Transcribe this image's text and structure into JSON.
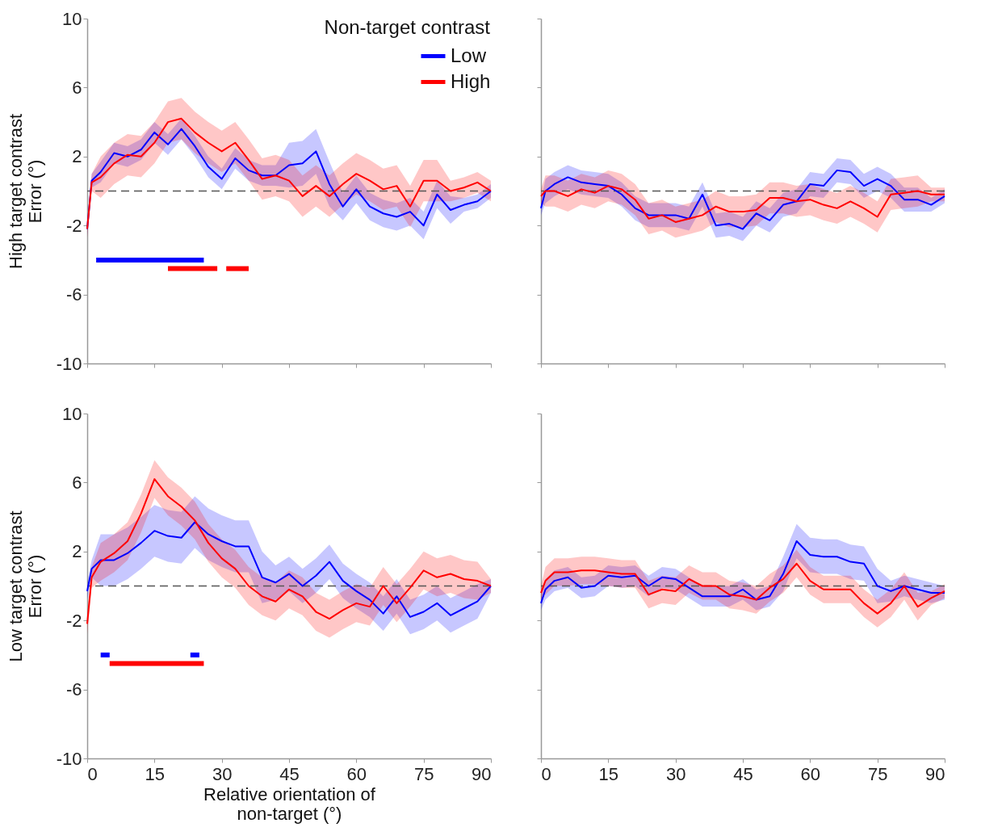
{
  "chart_data": [
    {
      "type": "line",
      "ylabel": "High target contrast\nError (°)",
      "legend_title": "Non-target contrast",
      "legend": "top right",
      "tick_labels": "y",
      "grid": false,
      "marker": "none",
      "line_style": "solid",
      "xlim": [
        0,
        90
      ],
      "xticks": [
        0,
        15,
        30,
        45,
        60,
        75,
        90
      ],
      "ylim": [
        -10,
        10
      ],
      "yticks": [
        -10,
        -6,
        -2,
        2,
        6,
        10
      ],
      "ref_lines": [
        {
          "axis": "y",
          "value": 0,
          "color": "#555555",
          "line_style": "dashed"
        }
      ],
      "x": [
        0,
        1,
        3,
        6,
        9,
        12,
        15,
        18,
        21,
        24,
        27,
        30,
        33,
        36,
        39,
        42,
        45,
        48,
        51,
        54,
        57,
        60,
        63,
        66,
        69,
        72,
        75,
        78,
        81,
        84,
        87,
        90
      ],
      "series": [
        {
          "name": "Low",
          "color": "#0000ff",
          "values": [
            -2.2,
            0.6,
            1.1,
            2.2,
            2.0,
            2.4,
            3.4,
            2.7,
            3.6,
            2.6,
            1.4,
            0.7,
            1.9,
            1.2,
            0.9,
            0.9,
            1.5,
            1.6,
            2.3,
            0.4,
            -0.9,
            0.1,
            -0.9,
            -1.3,
            -1.5,
            -1.2,
            -2.0,
            -0.2,
            -1.1,
            -0.8,
            -0.6,
            0.0
          ],
          "lower": [
            -2.6,
            0.2,
            0.5,
            1.6,
            1.4,
            1.8,
            2.8,
            2.1,
            3.0,
            2.0,
            0.8,
            0.1,
            1.3,
            0.6,
            0.3,
            0.3,
            0.2,
            0.3,
            1.0,
            -0.9,
            -1.7,
            -0.7,
            -1.7,
            -2.1,
            -2.3,
            -2.0,
            -2.8,
            -1.0,
            -1.9,
            -1.2,
            -1.0,
            -0.4
          ],
          "upper": [
            -1.8,
            1.0,
            1.7,
            2.8,
            2.6,
            3.0,
            4.0,
            3.3,
            4.2,
            3.2,
            2.0,
            1.3,
            2.5,
            1.8,
            1.5,
            1.5,
            2.8,
            2.9,
            3.6,
            1.7,
            -0.1,
            0.9,
            -0.1,
            -0.5,
            -0.7,
            -0.4,
            -1.2,
            0.6,
            -0.3,
            -0.4,
            -0.2,
            0.4
          ]
        },
        {
          "name": "High",
          "color": "#ff0000",
          "values": [
            -2.2,
            0.5,
            0.8,
            1.6,
            2.1,
            2.0,
            2.8,
            4.0,
            4.2,
            3.4,
            2.8,
            2.3,
            2.8,
            1.8,
            0.7,
            0.9,
            0.6,
            -0.3,
            0.3,
            -0.3,
            0.4,
            1.0,
            0.6,
            0.1,
            0.3,
            -0.9,
            0.6,
            0.6,
            0.0,
            0.2,
            0.5,
            0.0
          ],
          "lower": [
            -2.7,
            0.0,
            -0.4,
            0.4,
            0.9,
            0.8,
            1.6,
            2.8,
            3.0,
            2.2,
            1.6,
            1.1,
            1.6,
            0.6,
            -0.5,
            -0.3,
            -0.6,
            -1.5,
            -0.9,
            -1.5,
            -0.8,
            -0.2,
            -0.6,
            -1.1,
            -0.9,
            -2.1,
            -0.6,
            -0.6,
            -0.6,
            -0.4,
            -0.1,
            -0.6
          ],
          "upper": [
            -1.7,
            1.0,
            2.0,
            2.8,
            3.3,
            3.2,
            4.0,
            5.2,
            5.4,
            4.6,
            4.0,
            3.5,
            4.0,
            3.0,
            1.9,
            2.1,
            1.8,
            0.9,
            1.5,
            0.9,
            1.6,
            2.2,
            1.8,
            1.3,
            1.5,
            0.3,
            1.8,
            1.8,
            0.6,
            0.8,
            1.1,
            0.6
          ]
        },
        {
          "color": "#0000ff",
          "x": [
            2,
            26
          ],
          "values": [
            -4,
            -4
          ]
        },
        {
          "color": "#ff0000",
          "x": [
            18,
            29
          ],
          "values": [
            -4.5,
            -4.5
          ]
        },
        {
          "color": "#ff0000",
          "x": [
            31,
            36
          ],
          "values": [
            -4.5,
            -4.5
          ]
        }
      ]
    },
    {
      "type": "line",
      "tick_labels": false,
      "grid": false,
      "marker": "none",
      "line_style": "solid",
      "xlim": [
        0,
        90
      ],
      "xticks": [
        0,
        15,
        30,
        45,
        60,
        75,
        90
      ],
      "ylim": [
        -10,
        10
      ],
      "yticks": [
        -10,
        -6,
        -2,
        2,
        6,
        10
      ],
      "ref_lines": [
        {
          "axis": "y",
          "value": 0,
          "color": "#555555",
          "line_style": "dashed"
        }
      ],
      "x": [
        0,
        1,
        3,
        6,
        9,
        12,
        15,
        18,
        21,
        24,
        27,
        30,
        33,
        36,
        39,
        42,
        45,
        48,
        51,
        54,
        57,
        60,
        63,
        66,
        69,
        72,
        75,
        78,
        81,
        84,
        87,
        90
      ],
      "series": [
        {
          "color": "#0000ff",
          "values": [
            -1.0,
            0.0,
            0.4,
            0.8,
            0.5,
            0.4,
            0.3,
            -0.2,
            -1.0,
            -1.4,
            -1.4,
            -1.4,
            -1.6,
            -0.2,
            -2.0,
            -1.9,
            -2.2,
            -1.3,
            -1.7,
            -0.8,
            -0.6,
            0.4,
            0.3,
            1.2,
            1.1,
            0.3,
            0.7,
            0.3,
            -0.5,
            -0.5,
            -0.8,
            -0.3
          ],
          "lower": [
            -1.4,
            -0.7,
            -0.3,
            0.1,
            -0.2,
            -0.3,
            -0.4,
            -0.9,
            -1.7,
            -2.1,
            -2.1,
            -2.1,
            -2.3,
            -0.9,
            -2.7,
            -2.6,
            -2.9,
            -2.0,
            -2.4,
            -1.5,
            -1.3,
            -0.3,
            -0.4,
            0.5,
            0.4,
            -0.4,
            0.0,
            -0.4,
            -1.2,
            -1.2,
            -1.2,
            -0.7
          ],
          "upper": [
            -0.6,
            0.7,
            1.1,
            1.5,
            1.2,
            1.1,
            1.0,
            0.5,
            -0.3,
            -0.7,
            -0.7,
            -0.7,
            -0.9,
            0.5,
            -1.3,
            -1.2,
            -1.5,
            -0.6,
            -1.0,
            -0.1,
            0.1,
            1.1,
            1.0,
            1.9,
            1.8,
            1.0,
            1.4,
            1.0,
            0.2,
            0.2,
            -0.4,
            0.1
          ]
        },
        {
          "color": "#ff0000",
          "values": [
            -0.3,
            0.0,
            0.0,
            -0.3,
            0.1,
            -0.1,
            0.3,
            0.1,
            -0.5,
            -1.6,
            -1.4,
            -1.8,
            -1.6,
            -1.4,
            -0.9,
            -1.2,
            -1.2,
            -1.1,
            -0.4,
            -0.4,
            -0.6,
            -0.5,
            -0.8,
            -1.0,
            -0.6,
            -1.0,
            -1.5,
            -0.2,
            -0.1,
            0.0,
            -0.2,
            -0.2
          ],
          "lower": [
            -0.7,
            -0.9,
            -0.9,
            -1.2,
            -0.8,
            -1.0,
            -0.6,
            -0.8,
            -1.4,
            -2.5,
            -2.3,
            -2.7,
            -2.5,
            -2.3,
            -1.8,
            -2.1,
            -2.1,
            -2.0,
            -1.3,
            -1.3,
            -1.5,
            -1.4,
            -1.7,
            -1.9,
            -1.5,
            -1.9,
            -2.4,
            -1.1,
            -1.0,
            -0.9,
            -0.6,
            -0.6
          ],
          "upper": [
            0.1,
            0.9,
            0.9,
            0.6,
            1.0,
            0.8,
            1.2,
            1.0,
            0.4,
            -0.7,
            -0.5,
            -0.9,
            -0.7,
            -0.5,
            0.0,
            -0.3,
            -0.3,
            -0.2,
            0.5,
            0.5,
            0.3,
            0.4,
            0.1,
            -0.1,
            0.3,
            -0.1,
            -0.6,
            0.7,
            0.8,
            0.9,
            0.2,
            0.2
          ]
        }
      ]
    },
    {
      "type": "line",
      "ylabel": "Low target contrast\nError (°)",
      "xlabel": "Relative orientation of\nnon-target (°)",
      "grid": false,
      "marker": "none",
      "line_style": "solid",
      "xlim": [
        0,
        90
      ],
      "xticks": [
        0,
        15,
        30,
        45,
        60,
        75,
        90
      ],
      "ylim": [
        -10,
        10
      ],
      "yticks": [
        -10,
        -6,
        -2,
        2,
        6,
        10
      ],
      "ref_lines": [
        {
          "axis": "y",
          "value": 0,
          "color": "#555555",
          "line_style": "dashed"
        }
      ],
      "x": [
        0,
        1,
        3,
        6,
        9,
        12,
        15,
        18,
        21,
        24,
        27,
        30,
        33,
        36,
        39,
        42,
        45,
        48,
        51,
        54,
        57,
        60,
        63,
        66,
        69,
        72,
        75,
        78,
        81,
        84,
        87,
        90
      ],
      "series": [
        {
          "color": "#0000ff",
          "values": [
            -0.3,
            1.0,
            1.5,
            1.5,
            1.9,
            2.5,
            3.2,
            2.9,
            2.8,
            3.7,
            3.0,
            2.6,
            2.3,
            2.3,
            0.5,
            0.2,
            0.7,
            0.0,
            0.6,
            1.4,
            0.3,
            -0.3,
            -0.8,
            -1.6,
            -0.6,
            -1.8,
            -1.5,
            -1.0,
            -1.7,
            -1.3,
            -0.9,
            0.0
          ],
          "lower": [
            -0.8,
            0.5,
            0.0,
            0.0,
            0.4,
            1.0,
            1.7,
            1.4,
            1.3,
            2.2,
            1.5,
            1.1,
            0.8,
            0.8,
            -1.0,
            -0.8,
            -0.3,
            -1.0,
            -0.4,
            0.4,
            -0.7,
            -1.3,
            -1.8,
            -2.6,
            -1.6,
            -2.8,
            -2.5,
            -2.0,
            -2.7,
            -2.3,
            -1.9,
            -0.4
          ],
          "upper": [
            0.2,
            1.5,
            3.0,
            3.0,
            3.4,
            4.0,
            4.7,
            4.4,
            4.3,
            5.2,
            4.5,
            4.1,
            3.8,
            3.8,
            2.0,
            1.2,
            1.7,
            1.0,
            1.6,
            2.4,
            1.3,
            0.7,
            0.2,
            -0.6,
            0.4,
            -0.8,
            -0.5,
            0.0,
            -0.7,
            -0.3,
            0.1,
            0.4
          ]
        },
        {
          "color": "#ff0000",
          "values": [
            -2.2,
            0.5,
            1.4,
            1.9,
            2.6,
            4.2,
            6.2,
            5.2,
            4.6,
            3.8,
            2.5,
            1.6,
            1.0,
            0.0,
            -0.6,
            -0.9,
            -0.2,
            -0.6,
            -1.5,
            -1.9,
            -1.4,
            -1.0,
            -1.2,
            0.0,
            -1.0,
            -0.1,
            0.9,
            0.5,
            0.7,
            0.4,
            0.3,
            0.0
          ],
          "lower": [
            -2.8,
            -0.1,
            0.3,
            0.8,
            1.5,
            3.1,
            5.1,
            4.1,
            3.5,
            2.7,
            1.4,
            0.5,
            -0.1,
            -1.1,
            -1.7,
            -2.0,
            -1.3,
            -1.7,
            -2.6,
            -3.0,
            -2.5,
            -2.1,
            -2.3,
            -1.1,
            -2.1,
            -1.2,
            -0.2,
            -0.6,
            -0.4,
            -0.7,
            -0.8,
            -0.4
          ],
          "upper": [
            -1.6,
            1.1,
            2.5,
            3.0,
            3.7,
            5.3,
            7.3,
            6.3,
            5.7,
            4.9,
            3.6,
            2.7,
            2.1,
            1.1,
            0.5,
            0.2,
            0.9,
            0.5,
            -0.4,
            -0.8,
            -0.3,
            0.1,
            -0.1,
            1.1,
            0.1,
            1.0,
            2.0,
            1.6,
            1.8,
            1.5,
            1.4,
            0.4
          ]
        },
        {
          "color": "#0000ff",
          "x": [
            3,
            5
          ],
          "values": [
            -4,
            -4
          ]
        },
        {
          "color": "#0000ff",
          "x": [
            23,
            25
          ],
          "values": [
            -4,
            -4
          ]
        },
        {
          "color": "#ff0000",
          "x": [
            5,
            26
          ],
          "values": [
            -4.5,
            -4.5
          ]
        }
      ]
    },
    {
      "type": "line",
      "tick_labels": "x",
      "grid": false,
      "marker": "none",
      "line_style": "solid",
      "xlim": [
        0,
        90
      ],
      "xticks": [
        0,
        15,
        30,
        45,
        60,
        75,
        90
      ],
      "ylim": [
        -10,
        10
      ],
      "yticks": [
        -10,
        -6,
        -2,
        2,
        6,
        10
      ],
      "ref_lines": [
        {
          "axis": "y",
          "value": 0,
          "color": "#555555",
          "line_style": "dashed"
        }
      ],
      "x": [
        0,
        1,
        3,
        6,
        9,
        12,
        15,
        18,
        21,
        24,
        27,
        30,
        33,
        36,
        39,
        42,
        45,
        48,
        51,
        54,
        57,
        60,
        63,
        66,
        69,
        72,
        75,
        78,
        81,
        84,
        87,
        90
      ],
      "series": [
        {
          "color": "#0000ff",
          "values": [
            -1.0,
            -0.2,
            0.3,
            0.5,
            -0.1,
            0.0,
            0.6,
            0.5,
            0.6,
            0.0,
            0.5,
            0.4,
            -0.1,
            -0.6,
            -0.6,
            -0.6,
            -0.2,
            -0.8,
            -0.6,
            0.7,
            2.6,
            1.8,
            1.7,
            1.7,
            1.4,
            1.3,
            0.0,
            -0.3,
            0.0,
            -0.2,
            -0.4,
            -0.4
          ],
          "lower": [
            -1.4,
            -0.8,
            -0.3,
            -0.1,
            -0.7,
            -0.6,
            0.0,
            -0.1,
            0.0,
            -0.6,
            -0.1,
            -0.2,
            -0.7,
            -1.2,
            -1.2,
            -1.2,
            -0.8,
            -1.4,
            -1.2,
            -0.3,
            1.6,
            0.8,
            0.7,
            0.7,
            0.4,
            0.3,
            -1.0,
            -0.9,
            -0.6,
            -0.8,
            -1.0,
            -0.8
          ],
          "upper": [
            -0.6,
            0.4,
            0.9,
            1.1,
            0.5,
            0.6,
            1.2,
            1.1,
            1.2,
            0.6,
            1.1,
            1.0,
            0.5,
            0.0,
            0.0,
            0.0,
            0.4,
            -0.2,
            0.0,
            1.7,
            3.6,
            2.8,
            2.7,
            2.7,
            2.4,
            2.3,
            1.0,
            0.3,
            0.6,
            0.4,
            0.2,
            0.0
          ]
        },
        {
          "color": "#ff0000",
          "values": [
            -0.4,
            0.3,
            0.8,
            0.8,
            0.9,
            0.9,
            0.8,
            0.7,
            0.7,
            -0.5,
            -0.2,
            -0.3,
            0.4,
            0.0,
            0.0,
            -0.5,
            -0.6,
            -0.8,
            -0.1,
            0.4,
            1.3,
            0.3,
            -0.2,
            -0.2,
            -0.2,
            -1.0,
            -1.6,
            -1.0,
            0.0,
            -1.2,
            -0.7,
            -0.3
          ],
          "lower": [
            -0.8,
            -0.5,
            0.0,
            0.0,
            0.1,
            0.1,
            0.0,
            -0.1,
            -0.1,
            -1.3,
            -1.0,
            -1.1,
            -0.4,
            -0.8,
            -0.8,
            -1.3,
            -1.4,
            -1.6,
            -0.9,
            -0.4,
            0.5,
            -0.5,
            -1.0,
            -1.0,
            -1.0,
            -1.8,
            -2.4,
            -1.8,
            -0.8,
            -2.0,
            -1.1,
            -0.7
          ],
          "upper": [
            0.0,
            1.1,
            1.6,
            1.6,
            1.7,
            1.7,
            1.6,
            1.5,
            1.5,
            0.3,
            0.6,
            0.5,
            1.2,
            0.8,
            0.8,
            0.3,
            0.2,
            0.0,
            0.7,
            1.2,
            2.1,
            1.1,
            0.6,
            0.6,
            0.6,
            -0.2,
            -0.8,
            -0.2,
            0.8,
            -0.4,
            -0.3,
            0.1
          ]
        }
      ]
    }
  ]
}
